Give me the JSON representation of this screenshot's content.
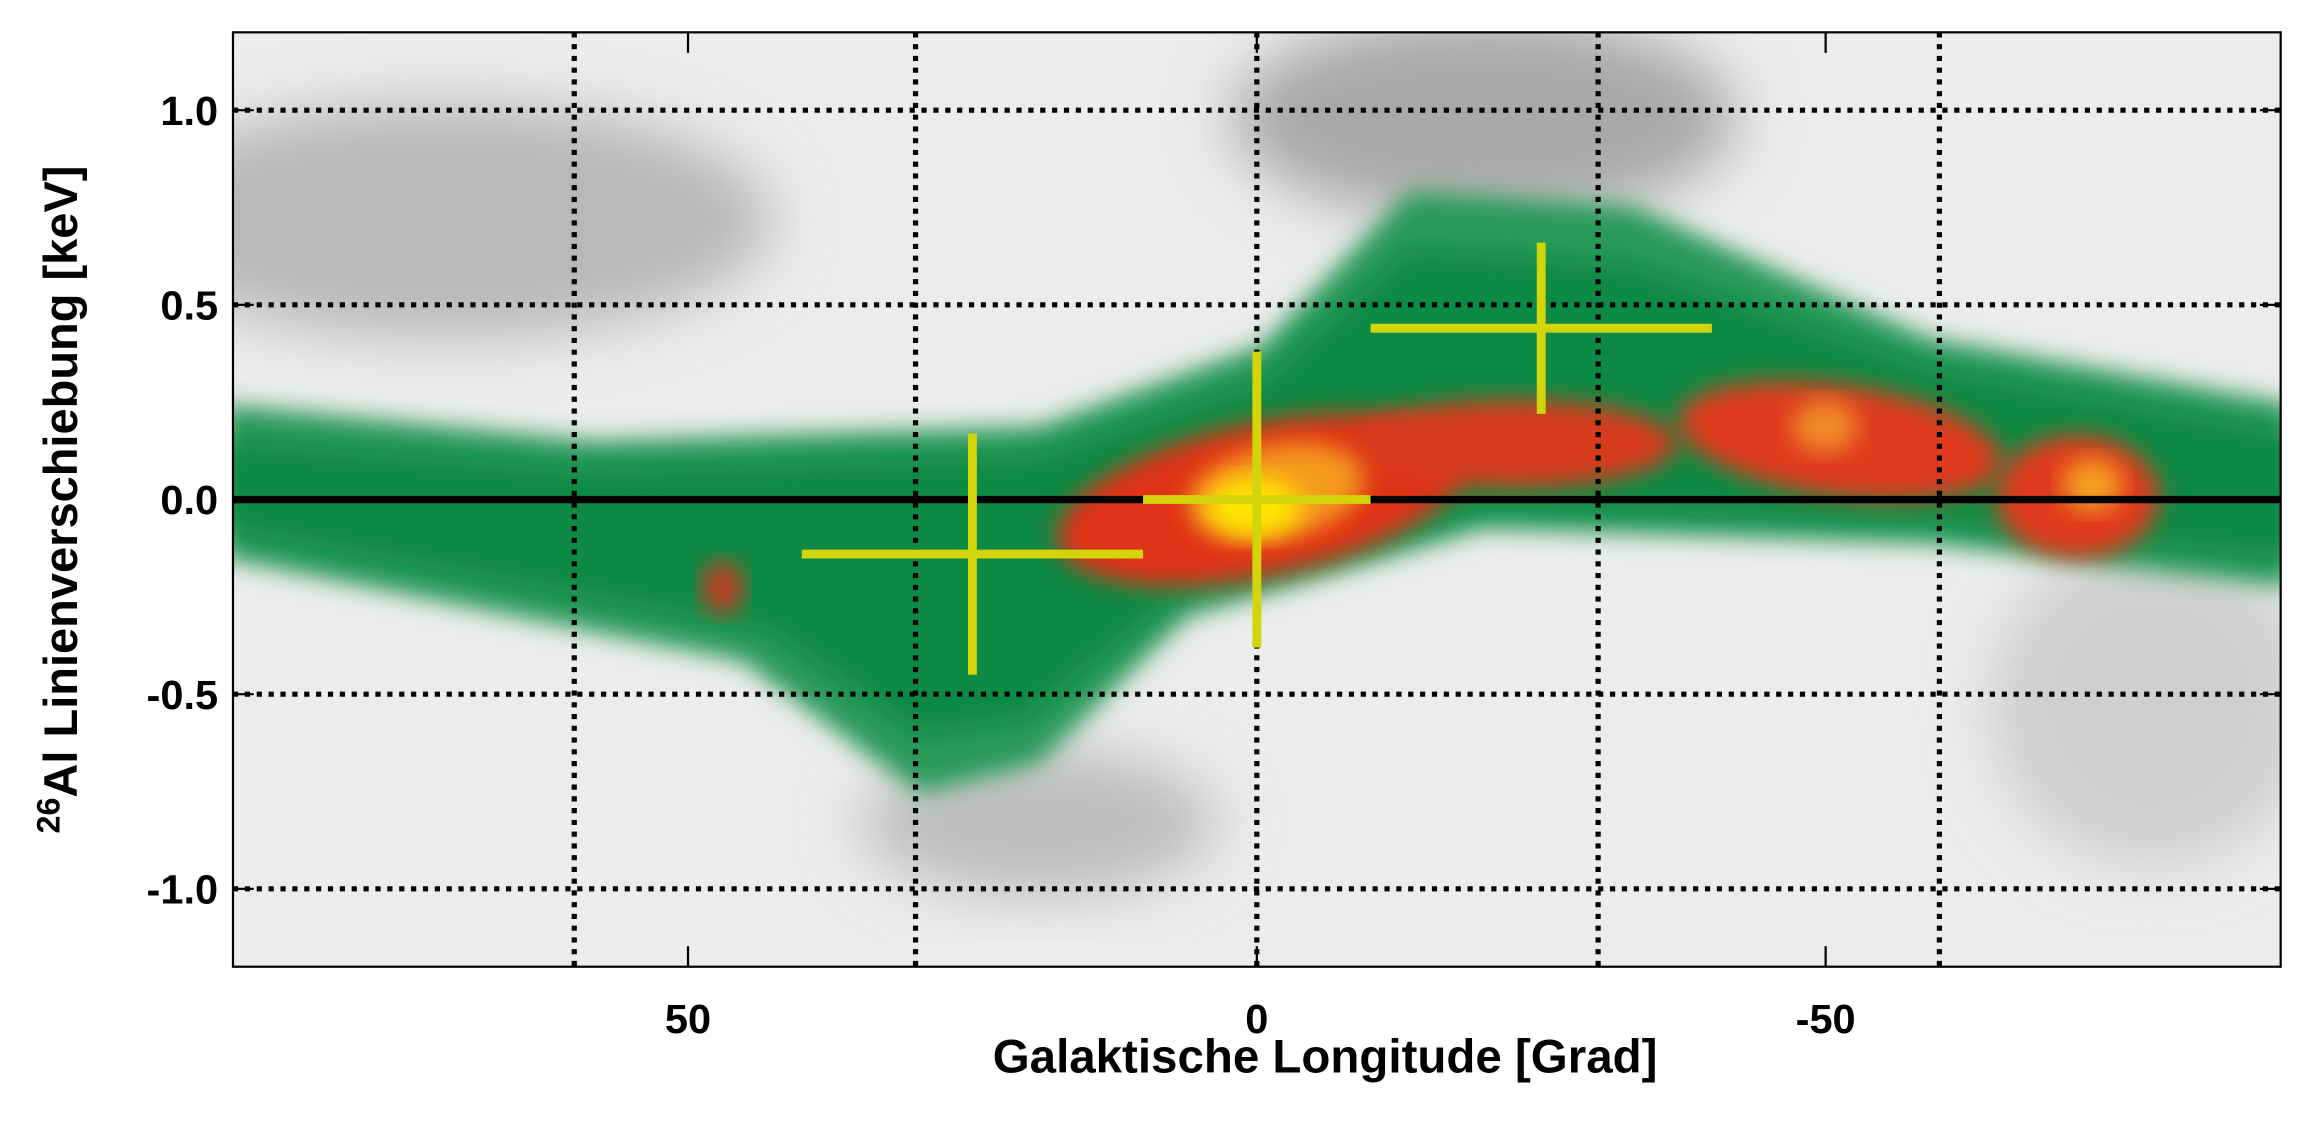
{
  "chart_data": {
    "type": "errorbar",
    "xlabel": "Galaktische Longitude [Grad]",
    "ylabel_sup": "26",
    "ylabel": "Al Linienverschiebung [keV]",
    "x": [
      25,
      0,
      -25
    ],
    "values": [
      -0.14,
      0.0,
      0.44
    ],
    "xerr": [
      15,
      10,
      15
    ],
    "yerr": [
      0.31,
      0.38,
      0.22
    ],
    "color": "#d4d40a",
    "xlim": [
      90,
      -90
    ],
    "ylim": [
      -1.2,
      1.2
    ],
    "xticks": [
      50,
      0,
      -50
    ],
    "yticks": [
      {
        "value": 1,
        "label": "1.0"
      },
      0.5,
      {
        "value": 0,
        "label": "0.0"
      },
      -0.5,
      {
        "value": -1,
        "label": "-1.0"
      }
    ],
    "xgrid": [
      60,
      30,
      0,
      -30,
      -60
    ],
    "grid": true
  }
}
